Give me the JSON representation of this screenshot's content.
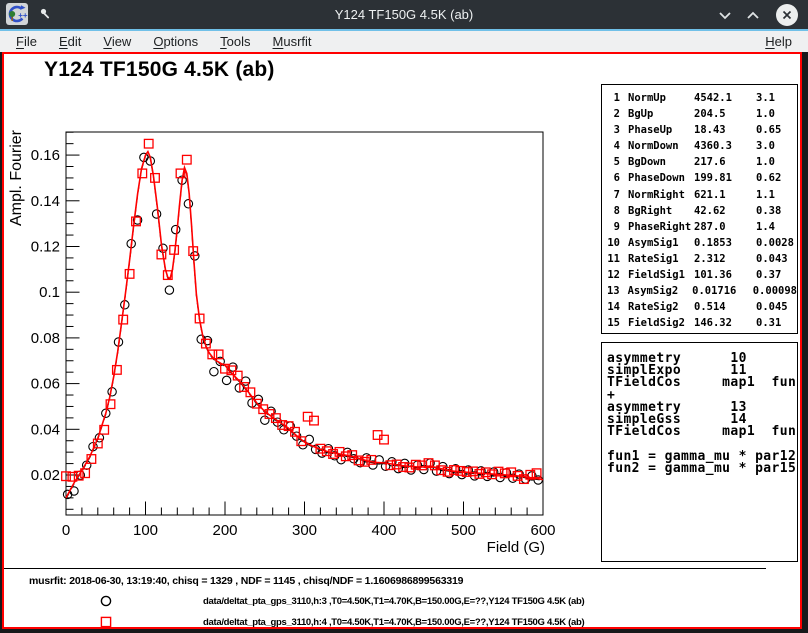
{
  "window": {
    "title": "Y124 TF150G 4.5K (ab)",
    "controls": {
      "minimize": "v",
      "maximize": "^",
      "close": "x"
    }
  },
  "menubar": {
    "items": [
      {
        "label": "File"
      },
      {
        "label": "Edit"
      },
      {
        "label": "View"
      },
      {
        "label": "Options"
      },
      {
        "label": "Tools"
      },
      {
        "label": "Musrfit"
      },
      {
        "label": "Help",
        "align": "right"
      }
    ]
  },
  "plot": {
    "title": "Y124 TF150G 4.5K (ab)",
    "xlabel": "Field (G)",
    "ylabel": "Ampl. Fourier"
  },
  "param_box": {
    "rows": [
      [
        "1",
        "NormUp",
        "4542.1",
        "3.1"
      ],
      [
        "2",
        "BgUp",
        "204.5",
        "1.0"
      ],
      [
        "3",
        "PhaseUp",
        "18.43",
        "0.65"
      ],
      [
        "4",
        "NormDown",
        "4360.3",
        "3.0"
      ],
      [
        "5",
        "BgDown",
        "217.6",
        "1.0"
      ],
      [
        "6",
        "PhaseDown",
        "199.81",
        "0.62"
      ],
      [
        "7",
        "NormRight",
        "621.1",
        "1.1"
      ],
      [
        "8",
        "BgRight",
        "42.62",
        "0.38"
      ],
      [
        "9",
        "PhaseRight",
        "287.0",
        "1.4"
      ],
      [
        "10",
        "AsymSig1",
        "0.1853",
        "0.0028"
      ],
      [
        "11",
        "RateSig1",
        "2.312",
        "0.043"
      ],
      [
        "12",
        "FieldSig1",
        "101.36",
        "0.37"
      ],
      [
        "13",
        "AsymSig2",
        "0.01716",
        "0.00098"
      ],
      [
        "14",
        "RateSig2",
        "0.514",
        "0.045"
      ],
      [
        "15",
        "FieldSig2",
        "146.32",
        "0.31"
      ]
    ]
  },
  "theory_box": {
    "lines": [
      "asymmetry      10",
      "simplExpo      11",
      "TFieldCos     map1  fun1",
      "+",
      "asymmetry      13",
      "simpleGss      14",
      "TFieldCos     map1  fun2",
      "",
      "fun1 = gamma_mu * par12",
      "fun2 = gamma_mu * par15"
    ]
  },
  "info_pad": {
    "fit_line": "musrfit: 2018-06-30, 13:19:40, chisq = 1329 , NDF = 1145 , chisq/NDF = 1.1606986899563319",
    "entries": [
      {
        "marker": "circle",
        "color": "#000000",
        "text": "data/deltat_pta_gps_3110,h:3 ,T0=4.50K,T1=4.70K,B=150.00G,E=??,Y124 TF150G 4.5K (ab)"
      },
      {
        "marker": "square",
        "color": "#ff0000",
        "text": "data/deltat_pta_gps_3110,h:4 ,T0=4.50K,T1=4.70K,B=150.00G,E=??,Y124 TF150G 4.5K (ab)"
      }
    ]
  },
  "chart_data": {
    "type": "scatter",
    "title": "Y124 TF150G 4.5K (ab)",
    "xlabel": "Field (G)",
    "ylabel": "Ampl. Fourier",
    "xlim": [
      0,
      600
    ],
    "ylim": [
      0.0025,
      0.1701
    ],
    "xticks": [
      0,
      100,
      200,
      300,
      400,
      500,
      600
    ],
    "xtick_minor_step": 20,
    "yticks": [
      0.02,
      0.04,
      0.06,
      0.08,
      0.1,
      0.12,
      0.14,
      0.16
    ],
    "ytick_minor_step": 0.005,
    "grid": false,
    "legend_position": "bottom-pad",
    "series": [
      {
        "name": "data/deltat_pta_gps_3110,h:3",
        "kind": "scatter",
        "marker": "circle",
        "color": "#000000",
        "points": [
          [
            2,
            0.0115
          ],
          [
            10,
            0.013
          ],
          [
            18,
            0.0199
          ],
          [
            26,
            0.0243
          ],
          [
            34,
            0.0324
          ],
          [
            42,
            0.0363
          ],
          [
            50,
            0.047
          ],
          [
            58,
            0.0564
          ],
          [
            66,
            0.0782
          ],
          [
            74,
            0.0945
          ],
          [
            82,
            0.1212
          ],
          [
            90,
            0.1316
          ],
          [
            98,
            0.159
          ],
          [
            106,
            0.1574
          ],
          [
            114,
            0.1342
          ],
          [
            122,
            0.1192
          ],
          [
            130,
            0.1009
          ],
          [
            138,
            0.1274
          ],
          [
            146,
            0.149
          ],
          [
            154,
            0.1387
          ],
          [
            162,
            0.1159
          ],
          [
            170,
            0.0794
          ],
          [
            178,
            0.0788
          ],
          [
            186,
            0.0652
          ],
          [
            194,
            0.0697
          ],
          [
            202,
            0.0614
          ],
          [
            210,
            0.0672
          ],
          [
            218,
            0.0581
          ],
          [
            226,
            0.0611
          ],
          [
            234,
            0.0515
          ],
          [
            242,
            0.0531
          ],
          [
            250,
            0.044
          ],
          [
            258,
            0.0479
          ],
          [
            266,
            0.0431
          ],
          [
            274,
            0.0398
          ],
          [
            282,
            0.0414
          ],
          [
            290,
            0.037
          ],
          [
            298,
            0.0332
          ],
          [
            306,
            0.0356
          ],
          [
            314,
            0.0312
          ],
          [
            322,
            0.0296
          ],
          [
            330,
            0.0315
          ],
          [
            338,
            0.0284
          ],
          [
            346,
            0.0267
          ],
          [
            354,
            0.0299
          ],
          [
            362,
            0.0271
          ],
          [
            370,
            0.0254
          ],
          [
            378,
            0.0275
          ],
          [
            386,
            0.0244
          ],
          [
            394,
            0.0266
          ],
          [
            402,
            0.0238
          ],
          [
            410,
            0.0258
          ],
          [
            418,
            0.0228
          ],
          [
            426,
            0.0251
          ],
          [
            434,
            0.0222
          ],
          [
            442,
            0.0243
          ],
          [
            450,
            0.0224
          ],
          [
            458,
            0.0252
          ],
          [
            466,
            0.0217
          ],
          [
            474,
            0.0237
          ],
          [
            482,
            0.0206
          ],
          [
            490,
            0.0227
          ],
          [
            498,
            0.0202
          ],
          [
            506,
            0.0222
          ],
          [
            514,
            0.0196
          ],
          [
            522,
            0.0218
          ],
          [
            530,
            0.0194
          ],
          [
            538,
            0.0213
          ],
          [
            546,
            0.0189
          ],
          [
            554,
            0.021
          ],
          [
            562,
            0.0186
          ],
          [
            570,
            0.0204
          ],
          [
            578,
            0.0182
          ],
          [
            586,
            0.0196
          ],
          [
            594,
            0.0178
          ]
        ]
      },
      {
        "name": "data/deltat_pta_gps_3110,h:4",
        "kind": "scatter",
        "marker": "square",
        "color": "#ff0000",
        "points": [
          [
            0,
            0.0195
          ],
          [
            8,
            0.0192
          ],
          [
            16,
            0.0197
          ],
          [
            24,
            0.0208
          ],
          [
            32,
            0.027
          ],
          [
            40,
            0.0338
          ],
          [
            48,
            0.0398
          ],
          [
            56,
            0.051
          ],
          [
            64,
            0.066
          ],
          [
            72,
            0.088
          ],
          [
            80,
            0.108
          ],
          [
            88,
            0.131
          ],
          [
            96,
            0.152
          ],
          [
            104,
            0.165
          ],
          [
            112,
            0.15
          ],
          [
            120,
            0.1165
          ],
          [
            128,
            0.1075
          ],
          [
            136,
            0.1185
          ],
          [
            144,
            0.152
          ],
          [
            152,
            0.158
          ],
          [
            160,
            0.118
          ],
          [
            168,
            0.0885
          ],
          [
            176,
            0.0775
          ],
          [
            184,
            0.0728
          ],
          [
            192,
            0.0728
          ],
          [
            200,
            0.0665
          ],
          [
            208,
            0.0658
          ],
          [
            216,
            0.0635
          ],
          [
            224,
            0.0585
          ],
          [
            232,
            0.0562
          ],
          [
            240,
            0.0512
          ],
          [
            248,
            0.0488
          ],
          [
            256,
            0.0467
          ],
          [
            264,
            0.0449
          ],
          [
            272,
            0.0419
          ],
          [
            280,
            0.0414
          ],
          [
            288,
            0.0389
          ],
          [
            296,
            0.0348
          ],
          [
            304,
            0.0455
          ],
          [
            312,
            0.0438
          ],
          [
            320,
            0.0315
          ],
          [
            328,
            0.0304
          ],
          [
            336,
            0.0292
          ],
          [
            344,
            0.0301
          ],
          [
            352,
            0.0282
          ],
          [
            360,
            0.0287
          ],
          [
            368,
            0.0264
          ],
          [
            376,
            0.0258
          ],
          [
            384,
            0.0266
          ],
          [
            392,
            0.0375
          ],
          [
            400,
            0.0355
          ],
          [
            408,
            0.0243
          ],
          [
            416,
            0.0246
          ],
          [
            424,
            0.0235
          ],
          [
            432,
            0.0233
          ],
          [
            440,
            0.0245
          ],
          [
            448,
            0.0242
          ],
          [
            456,
            0.0252
          ],
          [
            464,
            0.0242
          ],
          [
            472,
            0.0221
          ],
          [
            480,
            0.0214
          ],
          [
            488,
            0.0222
          ],
          [
            496,
            0.0218
          ],
          [
            504,
            0.0213
          ],
          [
            512,
            0.0216
          ],
          [
            520,
            0.0205
          ],
          [
            528,
            0.0212
          ],
          [
            536,
            0.0203
          ],
          [
            544,
            0.0215
          ],
          [
            552,
            0.0207
          ],
          [
            560,
            0.0212
          ],
          [
            568,
            0.0196
          ],
          [
            576,
            0.0182
          ],
          [
            584,
            0.0201
          ],
          [
            592,
            0.0208
          ]
        ]
      },
      {
        "name": "fit",
        "kind": "line",
        "color": "#ff0000",
        "dashed_underlay_color": "#000000",
        "points": [
          [
            0,
            0.01
          ],
          [
            10,
            0.0165
          ],
          [
            20,
            0.022
          ],
          [
            30,
            0.028
          ],
          [
            40,
            0.036
          ],
          [
            50,
            0.047
          ],
          [
            55,
            0.054
          ],
          [
            60,
            0.063
          ],
          [
            65,
            0.074
          ],
          [
            70,
            0.087
          ],
          [
            75,
            0.1
          ],
          [
            80,
            0.114
          ],
          [
            85,
            0.129
          ],
          [
            90,
            0.143
          ],
          [
            95,
            0.154
          ],
          [
            100,
            0.16
          ],
          [
            103,
            0.1615
          ],
          [
            106,
            0.159
          ],
          [
            110,
            0.151
          ],
          [
            115,
            0.137
          ],
          [
            120,
            0.121
          ],
          [
            125,
            0.11
          ],
          [
            128,
            0.1065
          ],
          [
            131,
            0.106
          ],
          [
            134,
            0.11
          ],
          [
            137,
            0.118
          ],
          [
            140,
            0.128
          ],
          [
            143,
            0.139
          ],
          [
            146,
            0.149
          ],
          [
            149,
            0.1545
          ],
          [
            152,
            0.152
          ],
          [
            155,
            0.143
          ],
          [
            158,
            0.129
          ],
          [
            161,
            0.113
          ],
          [
            164,
            0.099
          ],
          [
            168,
            0.088
          ],
          [
            172,
            0.081
          ],
          [
            176,
            0.0765
          ],
          [
            180,
            0.0735
          ],
          [
            185,
            0.0712
          ],
          [
            190,
            0.0698
          ],
          [
            195,
            0.0688
          ],
          [
            200,
            0.068
          ],
          [
            205,
            0.066
          ],
          [
            210,
            0.064
          ],
          [
            220,
            0.0605
          ],
          [
            230,
            0.056
          ],
          [
            240,
            0.0515
          ],
          [
            250,
            0.0478
          ],
          [
            260,
            0.0452
          ],
          [
            270,
            0.0428
          ],
          [
            280,
            0.0405
          ],
          [
            290,
            0.0372
          ],
          [
            300,
            0.0344
          ],
          [
            310,
            0.0327
          ],
          [
            320,
            0.0313
          ],
          [
            330,
            0.0301
          ],
          [
            340,
            0.0295
          ],
          [
            350,
            0.0288
          ],
          [
            360,
            0.0281
          ],
          [
            370,
            0.0271
          ],
          [
            380,
            0.0261
          ],
          [
            390,
            0.0255
          ],
          [
            400,
            0.0253
          ],
          [
            410,
            0.0248
          ],
          [
            420,
            0.0242
          ],
          [
            430,
            0.0238
          ],
          [
            440,
            0.0236
          ],
          [
            450,
            0.0235
          ],
          [
            458,
            0.024
          ],
          [
            466,
            0.0232
          ],
          [
            475,
            0.0225
          ],
          [
            485,
            0.0218
          ],
          [
            495,
            0.0214
          ],
          [
            505,
            0.0212
          ],
          [
            515,
            0.0209
          ],
          [
            525,
            0.0207
          ],
          [
            535,
            0.0205
          ],
          [
            545,
            0.0202
          ],
          [
            555,
            0.02
          ],
          [
            565,
            0.0197
          ],
          [
            575,
            0.0193
          ],
          [
            585,
            0.0188
          ],
          [
            595,
            0.0183
          ],
          [
            600,
            0.018
          ]
        ]
      }
    ]
  }
}
